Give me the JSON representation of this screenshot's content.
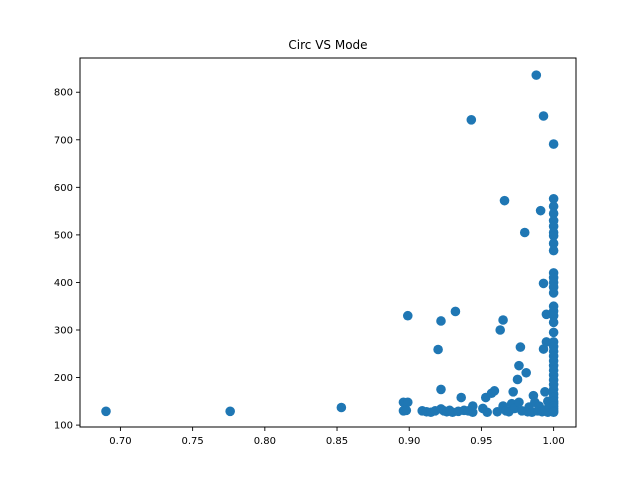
{
  "chart_data": {
    "type": "scatter",
    "title": "Circ VS Mode",
    "xlabel": "",
    "ylabel": "",
    "xlim": [
      0.672,
      1.0155
    ],
    "ylim": [
      96,
      872
    ],
    "x_ticks": [
      0.7,
      0.75,
      0.8,
      0.85,
      0.9,
      0.95,
      1.0
    ],
    "x_tick_labels": [
      "0.70",
      "0.75",
      "0.80",
      "0.85",
      "0.90",
      "0.95",
      "1.00"
    ],
    "y_ticks": [
      100,
      200,
      300,
      400,
      500,
      600,
      700,
      800
    ],
    "y_tick_labels": [
      "100",
      "200",
      "300",
      "400",
      "500",
      "600",
      "700",
      "800"
    ],
    "grid": false,
    "legend": "none",
    "color": "#1f77b4",
    "points": [
      [
        0.69,
        129
      ],
      [
        0.776,
        129
      ],
      [
        0.853,
        137
      ],
      [
        0.896,
        148
      ],
      [
        0.896,
        130
      ],
      [
        0.899,
        148
      ],
      [
        0.899,
        330
      ],
      [
        0.898,
        131
      ],
      [
        0.909,
        130
      ],
      [
        0.912,
        128
      ],
      [
        0.915,
        127
      ],
      [
        0.918,
        130
      ],
      [
        0.92,
        259
      ],
      [
        0.922,
        319
      ],
      [
        0.922,
        175
      ],
      [
        0.922,
        134
      ],
      [
        0.924,
        130
      ],
      [
        0.926,
        128
      ],
      [
        0.928,
        131
      ],
      [
        0.93,
        127
      ],
      [
        0.932,
        339
      ],
      [
        0.934,
        129
      ],
      [
        0.936,
        158
      ],
      [
        0.938,
        131
      ],
      [
        0.941,
        130
      ],
      [
        0.943,
        742
      ],
      [
        0.944,
        127
      ],
      [
        0.944,
        140
      ],
      [
        0.951,
        135
      ],
      [
        0.953,
        158
      ],
      [
        0.954,
        127
      ],
      [
        0.957,
        167
      ],
      [
        0.959,
        172
      ],
      [
        0.961,
        128
      ],
      [
        0.963,
        300
      ],
      [
        0.965,
        321
      ],
      [
        0.965,
        140
      ],
      [
        0.966,
        572
      ],
      [
        0.967,
        130
      ],
      [
        0.969,
        128
      ],
      [
        0.971,
        145
      ],
      [
        0.972,
        170
      ],
      [
        0.973,
        135
      ],
      [
        0.975,
        196
      ],
      [
        0.976,
        225
      ],
      [
        0.976,
        148
      ],
      [
        0.977,
        264
      ],
      [
        0.978,
        130
      ],
      [
        0.98,
        505
      ],
      [
        0.981,
        210
      ],
      [
        0.982,
        128
      ],
      [
        0.983,
        138
      ],
      [
        0.985,
        127
      ],
      [
        0.986,
        162
      ],
      [
        0.987,
        148
      ],
      [
        0.988,
        836
      ],
      [
        0.989,
        130
      ],
      [
        0.99,
        140
      ],
      [
        0.991,
        551
      ],
      [
        0.992,
        128
      ],
      [
        0.993,
        750
      ],
      [
        0.993,
        398
      ],
      [
        0.993,
        260
      ],
      [
        0.994,
        170
      ],
      [
        0.994,
        132
      ],
      [
        0.995,
        333
      ],
      [
        0.995,
        275
      ],
      [
        0.996,
        150
      ],
      [
        0.996,
        127
      ],
      [
        0.997,
        138
      ],
      [
        1.0,
        691
      ],
      [
        1.0,
        576
      ],
      [
        1.0,
        560
      ],
      [
        1.0,
        545
      ],
      [
        1.0,
        530
      ],
      [
        1.0,
        518
      ],
      [
        1.0,
        505
      ],
      [
        1.0,
        498
      ],
      [
        1.0,
        482
      ],
      [
        1.0,
        467
      ],
      [
        1.0,
        420
      ],
      [
        1.0,
        410
      ],
      [
        1.0,
        400
      ],
      [
        1.0,
        390
      ],
      [
        1.0,
        378
      ],
      [
        1.0,
        350
      ],
      [
        1.0,
        340
      ],
      [
        1.0,
        330
      ],
      [
        1.0,
        316
      ],
      [
        1.0,
        295
      ],
      [
        1.0,
        275
      ],
      [
        1.0,
        265
      ],
      [
        1.0,
        255
      ],
      [
        1.0,
        245
      ],
      [
        1.0,
        235
      ],
      [
        1.0,
        225
      ],
      [
        1.0,
        215
      ],
      [
        1.0,
        205
      ],
      [
        1.0,
        195
      ],
      [
        1.0,
        185
      ],
      [
        1.0,
        175
      ],
      [
        1.0,
        165
      ],
      [
        1.0,
        158
      ],
      [
        1.0,
        150
      ],
      [
        1.0,
        145
      ],
      [
        1.0,
        140
      ],
      [
        1.0,
        135
      ],
      [
        1.0,
        130
      ],
      [
        1.0,
        127
      ]
    ]
  }
}
